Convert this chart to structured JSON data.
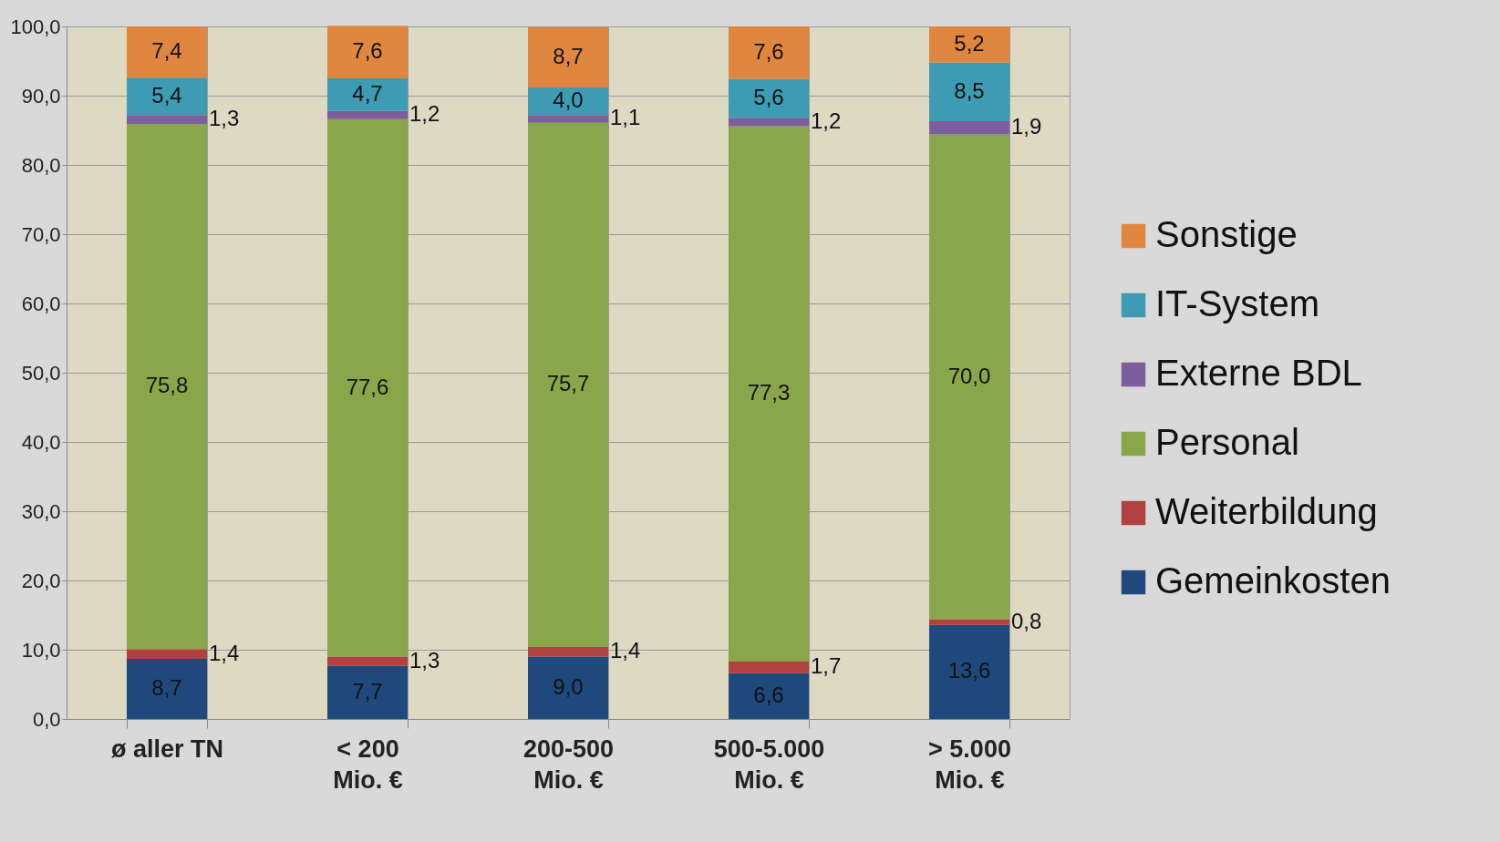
{
  "chart_data": {
    "type": "bar",
    "stacked": true,
    "categories": [
      "ø aller TN",
      "< 200\nMio. €",
      "200-500\nMio. €",
      "500-5.000\nMio. €",
      "> 5.000\nMio. €"
    ],
    "series": [
      {
        "name": "Gemeinkosten",
        "color": "#1f497d",
        "values": [
          8.7,
          7.7,
          9.0,
          6.6,
          13.6
        ],
        "value_labels": [
          "8,7",
          "7,7",
          "9,0",
          "6,6",
          "13,6"
        ]
      },
      {
        "name": "Weiterbildung",
        "color": "#b0413e",
        "values": [
          1.4,
          1.3,
          1.4,
          1.7,
          0.8
        ],
        "value_labels": [
          "1,4",
          "1,3",
          "1,4",
          "1,7",
          "0,8"
        ]
      },
      {
        "name": "Personal",
        "color": "#8aa64b",
        "values": [
          75.8,
          77.6,
          75.7,
          77.3,
          70.0
        ],
        "value_labels": [
          "75,8",
          "77,6",
          "75,7",
          "77,3",
          "70,0"
        ]
      },
      {
        "name": "Externe BDL",
        "color": "#7b5e9b",
        "values": [
          1.3,
          1.2,
          1.1,
          1.2,
          1.9
        ],
        "value_labels": [
          "1,3",
          "1,2",
          "1,1",
          "1,2",
          "1,9"
        ]
      },
      {
        "name": "IT-System",
        "color": "#3d9bb3",
        "values": [
          5.4,
          4.7,
          4.0,
          5.6,
          8.5
        ],
        "value_labels": [
          "5,4",
          "4,7",
          "4,0",
          "5,6",
          "8,5"
        ]
      },
      {
        "name": "Sonstige",
        "color": "#e0873f",
        "values": [
          7.4,
          7.6,
          8.7,
          7.6,
          5.2
        ],
        "value_labels": [
          "7,4",
          "7,6",
          "8,7",
          "7,6",
          "5,2"
        ]
      }
    ],
    "ylim": [
      0,
      100
    ],
    "yticks": [
      {
        "value": 0,
        "label": "0,0"
      },
      {
        "value": 10,
        "label": "10,0"
      },
      {
        "value": 20,
        "label": "20,0"
      },
      {
        "value": 30,
        "label": "30,0"
      },
      {
        "value": 40,
        "label": "40,0"
      },
      {
        "value": 50,
        "label": "50,0"
      },
      {
        "value": 60,
        "label": "60,0"
      },
      {
        "value": 70,
        "label": "70,0"
      },
      {
        "value": 80,
        "label": "80,0"
      },
      {
        "value": 90,
        "label": "90,0"
      },
      {
        "value": 100,
        "label": "100,0"
      }
    ],
    "grid": true,
    "legend": "right"
  }
}
